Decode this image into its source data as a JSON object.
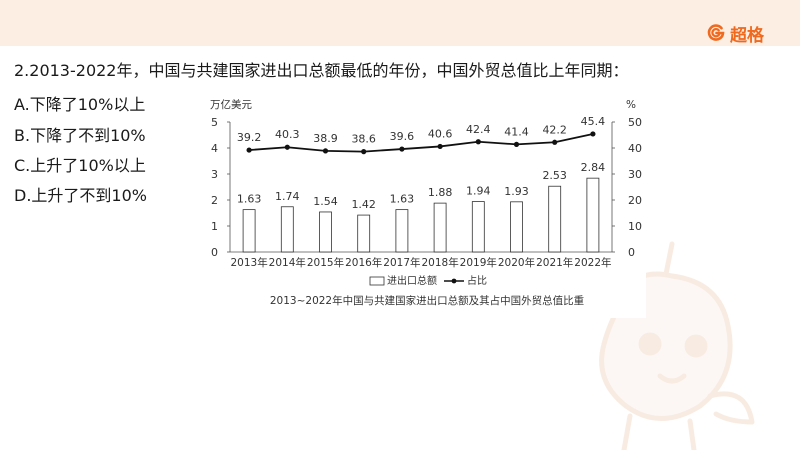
{
  "brand": {
    "name": "超格"
  },
  "question": {
    "text": "2.2013-2022年，中国与共建国家进出口总额最低的年份，中国外贸总值比上年同期："
  },
  "options": [
    {
      "label": "A.下降了10%以上"
    },
    {
      "label": "B.下降了不到10%"
    },
    {
      "label": "C.上升了10%以上"
    },
    {
      "label": "D.上升了不到10%"
    }
  ],
  "chart_data": {
    "type": "bar",
    "title": "2013~2022年中国与共建国家进出口总额及其占中国外贸总值比重",
    "categories": [
      "2013年",
      "2014年",
      "2015年",
      "2016年",
      "2017年",
      "2018年",
      "2019年",
      "2020年",
      "2021年",
      "2022年"
    ],
    "series": [
      {
        "name": "进出口总额",
        "type": "bar",
        "axis": "left",
        "values": [
          1.63,
          1.74,
          1.54,
          1.42,
          1.63,
          1.88,
          1.94,
          1.93,
          2.53,
          2.84
        ]
      },
      {
        "name": "占比",
        "type": "line",
        "axis": "right",
        "values": [
          39.2,
          40.3,
          38.9,
          38.6,
          39.6,
          40.6,
          42.4,
          41.4,
          42.2,
          45.4
        ]
      }
    ],
    "y_left": {
      "unit": "万亿美元",
      "ylim": [
        0,
        5
      ],
      "ticks": [
        0,
        1,
        2,
        3,
        4,
        5
      ]
    },
    "y_right": {
      "unit": "%",
      "ylim": [
        0,
        50
      ],
      "ticks": [
        0,
        10,
        20,
        30,
        40,
        50
      ]
    },
    "legend_placement": "bottom-center",
    "grid": false
  }
}
